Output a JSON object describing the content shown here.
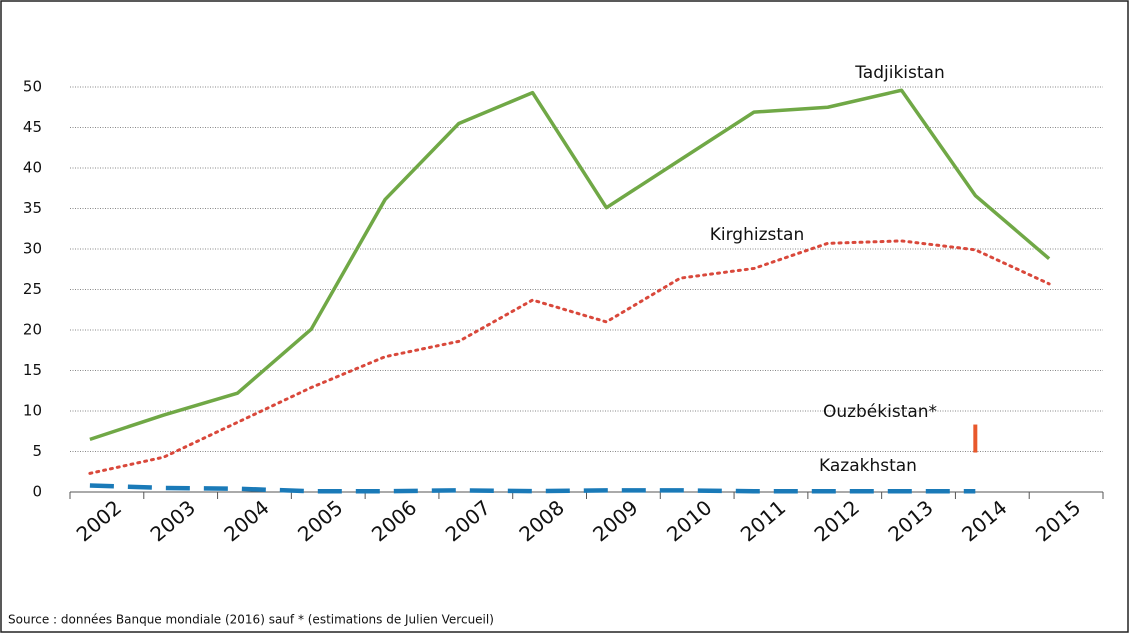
{
  "chart_data": {
    "type": "line",
    "categories": [
      "2002",
      "2003",
      "2004",
      "2005",
      "2006",
      "2007",
      "2008",
      "2009",
      "2010",
      "2011",
      "2012",
      "2013",
      "2014",
      "2015"
    ],
    "series": [
      {
        "name": "Tadjikistan",
        "color": "#70a846",
        "line_style": "solid",
        "values": [
          6.5,
          9.5,
          12.2,
          20.1,
          36.1,
          45.5,
          49.3,
          35.1,
          41,
          46.9,
          47.5,
          49.6,
          36.6,
          28.8
        ]
      },
      {
        "name": "Kirghizstan",
        "color": "#d9483b",
        "line_style": "dotted",
        "values": [
          2.3,
          4.3,
          8.6,
          12.9,
          16.7,
          18.6,
          23.7,
          21,
          26.4,
          27.6,
          30.7,
          31,
          29.9,
          25.7
        ]
      },
      {
        "name": "Ouzbékistan*",
        "color": "#e8582c",
        "line_style": "marker",
        "values": [
          null,
          null,
          null,
          null,
          null,
          null,
          null,
          null,
          null,
          null,
          null,
          null,
          6.6,
          null
        ]
      },
      {
        "name": "Kazakhstan",
        "color": "#1a7ab8",
        "line_style": "dashed",
        "values": [
          0.8,
          0.5,
          0.4,
          0.1,
          0.1,
          0.2,
          0.1,
          0.2,
          0.2,
          0.1,
          0.1,
          0.1,
          0.1,
          null
        ]
      }
    ],
    "ylim": [
      0,
      50
    ],
    "yticks": [
      0,
      5,
      10,
      15,
      20,
      25,
      30,
      35,
      40,
      45,
      50
    ],
    "grid": true,
    "source": "Source : données Banque mondiale (2016) sauf * (estimations de Julien Vercueil)"
  }
}
